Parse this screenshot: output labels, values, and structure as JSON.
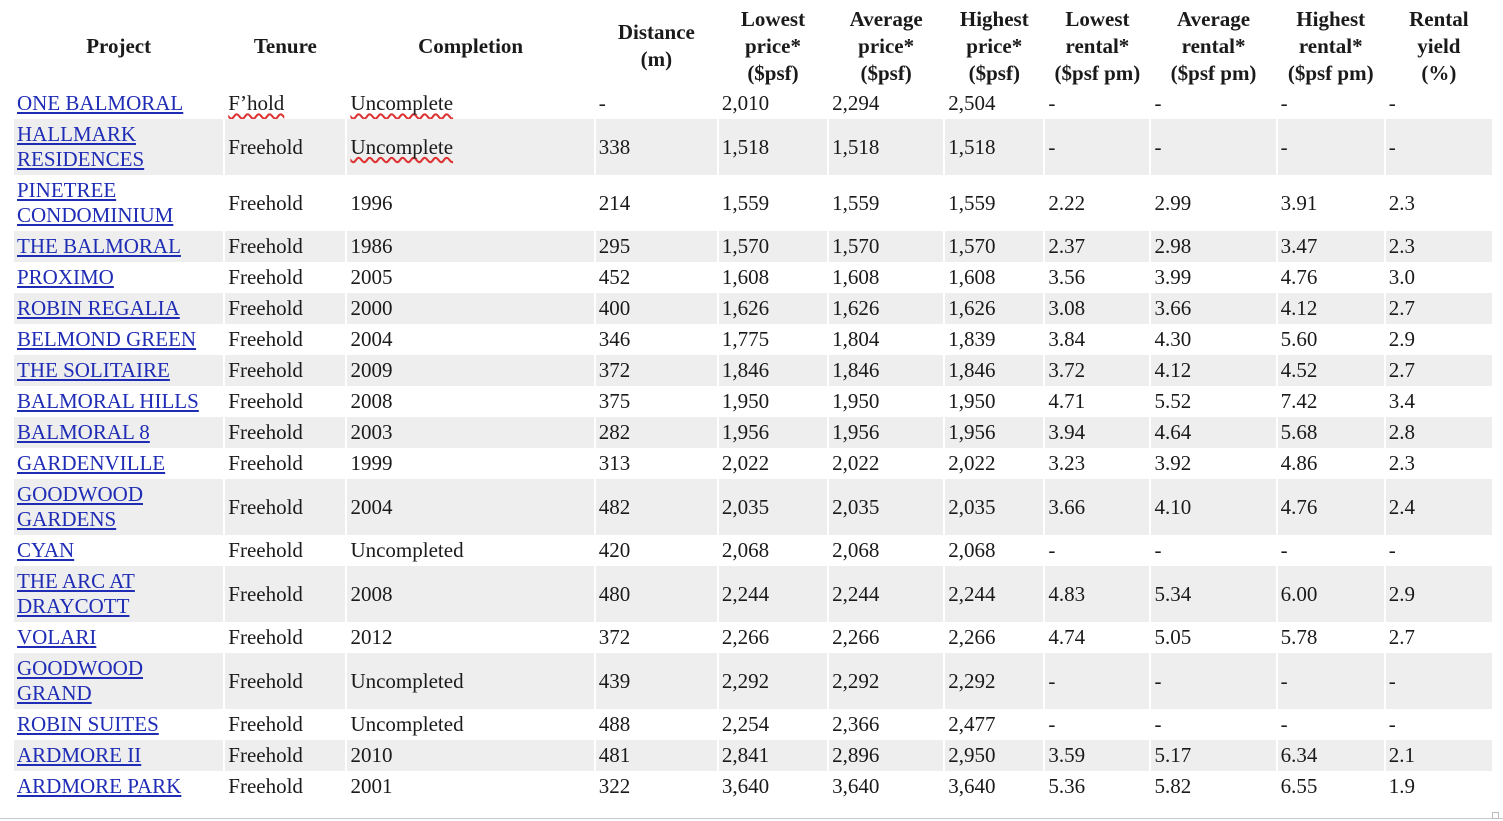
{
  "headers": [
    {
      "lines": [
        "Project"
      ]
    },
    {
      "lines": [
        "Tenure"
      ]
    },
    {
      "lines": [
        "Completion"
      ]
    },
    {
      "lines": [
        "Distance",
        "(m)"
      ]
    },
    {
      "lines": [
        "Lowest",
        "price*",
        "($psf)"
      ]
    },
    {
      "lines": [
        "Average",
        "price*",
        "($psf)"
      ]
    },
    {
      "lines": [
        "Highest",
        "price*",
        "($psf)"
      ]
    },
    {
      "lines": [
        "Lowest",
        "rental*",
        "($psf pm)"
      ]
    },
    {
      "lines": [
        "Average",
        "rental*",
        "($psf pm)"
      ]
    },
    {
      "lines": [
        "Highest",
        "rental*",
        "($psf pm)"
      ]
    },
    {
      "lines": [
        "Rental",
        "yield",
        "(%)"
      ]
    }
  ],
  "rows": [
    {
      "project": [
        "ONE BALMORAL"
      ],
      "tenure": "F’hold",
      "completion": "Uncomplete",
      "distance": "-",
      "low_price": "2,010",
      "avg_price": "2,294",
      "high_price": "2,504",
      "low_rent": "-",
      "avg_rent": "-",
      "high_rent": "-",
      "yield": "-"
    },
    {
      "project": [
        "HALLMARK",
        "RESIDENCES"
      ],
      "tenure": "Freehold",
      "completion": "Uncomplete",
      "distance": "338",
      "low_price": "1,518",
      "avg_price": "1,518",
      "high_price": "1,518",
      "low_rent": "-",
      "avg_rent": "-",
      "high_rent": "-",
      "yield": "-"
    },
    {
      "project": [
        "PINETREE",
        "CONDOMINIUM"
      ],
      "tenure": "Freehold",
      "completion": "1996",
      "distance": "214",
      "low_price": "1,559",
      "avg_price": "1,559",
      "high_price": "1,559",
      "low_rent": "2.22",
      "avg_rent": "2.99",
      "high_rent": "3.91",
      "yield": "2.3"
    },
    {
      "project": [
        "THE BALMORAL"
      ],
      "tenure": "Freehold",
      "completion": "1986",
      "distance": "295",
      "low_price": "1,570",
      "avg_price": "1,570",
      "high_price": "1,570",
      "low_rent": "2.37",
      "avg_rent": "2.98",
      "high_rent": "3.47",
      "yield": "2.3"
    },
    {
      "project": [
        "PROXIMO"
      ],
      "tenure": "Freehold",
      "completion": "2005",
      "distance": "452",
      "low_price": "1,608",
      "avg_price": "1,608",
      "high_price": "1,608",
      "low_rent": "3.56",
      "avg_rent": "3.99",
      "high_rent": "4.76",
      "yield": "3.0"
    },
    {
      "project": [
        "ROBIN REGALIA"
      ],
      "tenure": "Freehold",
      "completion": "2000",
      "distance": "400",
      "low_price": "1,626",
      "avg_price": "1,626",
      "high_price": "1,626",
      "low_rent": "3.08",
      "avg_rent": "3.66",
      "high_rent": "4.12",
      "yield": "2.7"
    },
    {
      "project": [
        "BELMOND GREEN"
      ],
      "tenure": "Freehold",
      "completion": "2004",
      "distance": "346",
      "low_price": "1,775",
      "avg_price": "1,804",
      "high_price": "1,839",
      "low_rent": "3.84",
      "avg_rent": "4.30",
      "high_rent": "5.60",
      "yield": "2.9"
    },
    {
      "project": [
        "THE SOLITAIRE"
      ],
      "tenure": "Freehold",
      "completion": "2009",
      "distance": "372",
      "low_price": "1,846",
      "avg_price": "1,846",
      "high_price": "1,846",
      "low_rent": "3.72",
      "avg_rent": "4.12",
      "high_rent": "4.52",
      "yield": "2.7"
    },
    {
      "project": [
        "BALMORAL HILLS"
      ],
      "tenure": "Freehold",
      "completion": "2008",
      "distance": "375",
      "low_price": "1,950",
      "avg_price": "1,950",
      "high_price": "1,950",
      "low_rent": "4.71",
      "avg_rent": "5.52",
      "high_rent": "7.42",
      "yield": "3.4"
    },
    {
      "project": [
        "BALMORAL 8"
      ],
      "tenure": "Freehold",
      "completion": "2003",
      "distance": "282",
      "low_price": "1,956",
      "avg_price": "1,956",
      "high_price": "1,956",
      "low_rent": "3.94",
      "avg_rent": "4.64",
      "high_rent": "5.68",
      "yield": "2.8"
    },
    {
      "project": [
        "GARDENVILLE"
      ],
      "tenure": "Freehold",
      "completion": "1999",
      "distance": "313",
      "low_price": "2,022",
      "avg_price": "2,022",
      "high_price": "2,022",
      "low_rent": "3.23",
      "avg_rent": "3.92",
      "high_rent": "4.86",
      "yield": "2.3"
    },
    {
      "project": [
        "GOODWOOD",
        "GARDENS"
      ],
      "tenure": "Freehold",
      "completion": "2004",
      "distance": "482",
      "low_price": "2,035",
      "avg_price": "2,035",
      "high_price": "2,035",
      "low_rent": "3.66",
      "avg_rent": "4.10",
      "high_rent": "4.76",
      "yield": "2.4"
    },
    {
      "project": [
        "CYAN"
      ],
      "tenure": "Freehold",
      "completion": "Uncompleted",
      "distance": "420",
      "low_price": "2,068",
      "avg_price": "2,068",
      "high_price": "2,068",
      "low_rent": "-",
      "avg_rent": "-",
      "high_rent": "-",
      "yield": "-"
    },
    {
      "project": [
        "THE ARC AT",
        "DRAYCOTT"
      ],
      "tenure": "Freehold",
      "completion": "2008",
      "distance": "480",
      "low_price": "2,244",
      "avg_price": "2,244",
      "high_price": "2,244",
      "low_rent": "4.83",
      "avg_rent": "5.34",
      "high_rent": "6.00",
      "yield": "2.9"
    },
    {
      "project": [
        "VOLARI"
      ],
      "tenure": "Freehold",
      "completion": "2012",
      "distance": "372",
      "low_price": "2,266",
      "avg_price": "2,266",
      "high_price": "2,266",
      "low_rent": "4.74",
      "avg_rent": "5.05",
      "high_rent": "5.78",
      "yield": "2.7"
    },
    {
      "project": [
        "GOODWOOD",
        "GRAND"
      ],
      "tenure": "Freehold",
      "completion": "Uncompleted",
      "distance": "439",
      "low_price": "2,292",
      "avg_price": "2,292",
      "high_price": "2,292",
      "low_rent": "-",
      "avg_rent": "-",
      "high_rent": "-",
      "yield": "-"
    },
    {
      "project": [
        "ROBIN SUITES"
      ],
      "tenure": "Freehold",
      "completion": "Uncompleted",
      "distance": "488",
      "low_price": "2,254",
      "avg_price": "2,366",
      "high_price": "2,477",
      "low_rent": "-",
      "avg_rent": "-",
      "high_rent": "-",
      "yield": "-"
    },
    {
      "project": [
        "ARDMORE II"
      ],
      "tenure": "Freehold",
      "completion": "2010",
      "distance": "481",
      "low_price": "2,841",
      "avg_price": "2,896",
      "high_price": "2,950",
      "low_rent": "3.59",
      "avg_rent": "5.17",
      "high_rent": "6.34",
      "yield": "2.1"
    },
    {
      "project": [
        "ARDMORE PARK"
      ],
      "tenure": "Freehold",
      "completion": "2001",
      "distance": "322",
      "low_price": "3,640",
      "avg_price": "3,640",
      "high_price": "3,640",
      "low_rent": "5.36",
      "avg_rent": "5.82",
      "high_rent": "6.55",
      "yield": "1.9"
    }
  ],
  "colors": {
    "link": "#1f2cb5",
    "stripe": "#eeeeee",
    "text": "#1a1a1a"
  }
}
